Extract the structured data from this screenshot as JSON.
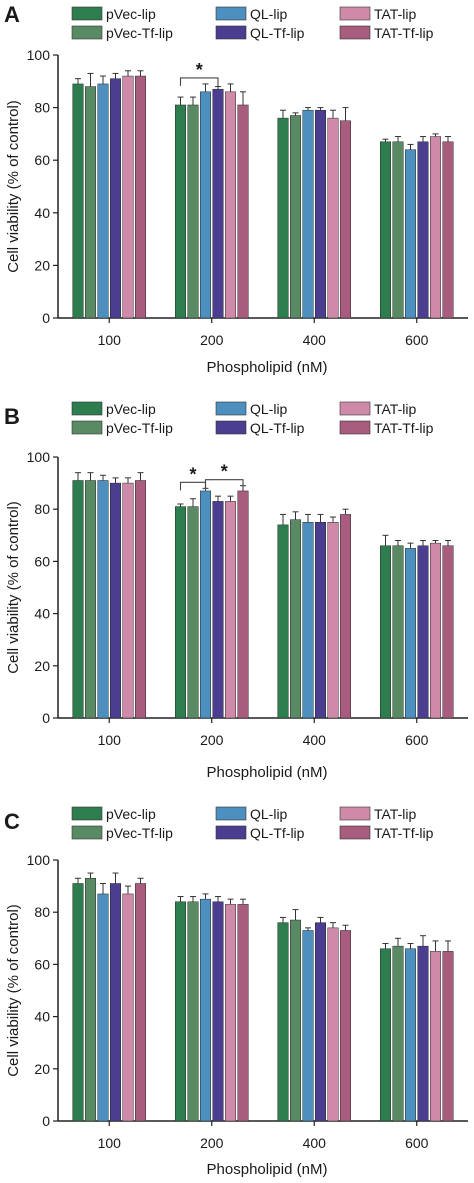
{
  "figure": {
    "panels": [
      {
        "letter": "A",
        "chart_data": {
          "type": "bar",
          "xlabel": "Phospholipid (nM)",
          "ylabel": "Cell viability (% of control)",
          "ylim": [
            0,
            100
          ],
          "yticks": [
            0,
            20,
            40,
            60,
            80,
            100
          ],
          "categories": [
            "100",
            "200",
            "400",
            "600"
          ],
          "legend": [
            "pVec-lip",
            "pVec-Tf-lip",
            "QL-lip",
            "QL-Tf-lip",
            "TAT-lip",
            "TAT-Tf-lip"
          ],
          "colors": [
            "#2e7d4f",
            "#5a8a63",
            "#4d8fbf",
            "#4b3d8f",
            "#d08aa9",
            "#a85c7e"
          ],
          "series": [
            {
              "name": "pVec-lip",
              "values": [
                89,
                81,
                76,
                67
              ],
              "errors": [
                2,
                3,
                3,
                1
              ]
            },
            {
              "name": "pVec-Tf-lip",
              "values": [
                88,
                81,
                77,
                67
              ],
              "errors": [
                5,
                3,
                1,
                2
              ]
            },
            {
              "name": "QL-lip",
              "values": [
                89,
                86,
                79,
                64
              ],
              "errors": [
                3,
                3,
                1,
                2
              ]
            },
            {
              "name": "QL-Tf-lip",
              "values": [
                91,
                87,
                79,
                67
              ],
              "errors": [
                2,
                1,
                1,
                2
              ]
            },
            {
              "name": "TAT-lip",
              "values": [
                92,
                86,
                76,
                69
              ],
              "errors": [
                2,
                3,
                3,
                1
              ]
            },
            {
              "name": "TAT-Tf-lip",
              "values": [
                92,
                81,
                75,
                67
              ],
              "errors": [
                2,
                5,
                5,
                2
              ]
            }
          ],
          "annotations": [
            {
              "text": "*",
              "category": "200",
              "from_series": 0,
              "to_series": 3
            }
          ]
        }
      },
      {
        "letter": "B",
        "chart_data": {
          "type": "bar",
          "xlabel": "Phospholipid (nM)",
          "ylabel": "Cell viability (% of control)",
          "ylim": [
            0,
            100
          ],
          "yticks": [
            0,
            20,
            40,
            60,
            80,
            100
          ],
          "categories": [
            "100",
            "200",
            "400",
            "600"
          ],
          "legend": [
            "pVec-lip",
            "pVec-Tf-lip",
            "QL-lip",
            "QL-Tf-lip",
            "TAT-lip",
            "TAT-Tf-lip"
          ],
          "colors": [
            "#2e7d4f",
            "#5a8a63",
            "#4d8fbf",
            "#4b3d8f",
            "#d08aa9",
            "#a85c7e"
          ],
          "series": [
            {
              "name": "pVec-lip",
              "values": [
                91,
                81,
                74,
                66
              ],
              "errors": [
                3,
                1,
                4,
                4
              ]
            },
            {
              "name": "pVec-Tf-lip",
              "values": [
                91,
                81,
                76,
                66
              ],
              "errors": [
                3,
                3,
                3,
                2
              ]
            },
            {
              "name": "QL-lip",
              "values": [
                91,
                87,
                75,
                65
              ],
              "errors": [
                2,
                1,
                3,
                2
              ]
            },
            {
              "name": "QL-Tf-lip",
              "values": [
                90,
                83,
                75,
                66
              ],
              "errors": [
                2,
                2,
                3,
                2
              ]
            },
            {
              "name": "TAT-lip",
              "values": [
                90,
                83,
                75,
                67
              ],
              "errors": [
                2,
                2,
                2,
                1
              ]
            },
            {
              "name": "TAT-Tf-lip",
              "values": [
                91,
                87,
                78,
                66
              ],
              "errors": [
                3,
                2,
                2,
                2
              ]
            }
          ],
          "annotations": [
            {
              "text": "*",
              "category": "200",
              "from_series": 0,
              "to_series": 2
            },
            {
              "text": "*",
              "category": "200",
              "from_series": 2,
              "to_series": 5
            }
          ]
        }
      },
      {
        "letter": "C",
        "chart_data": {
          "type": "bar",
          "xlabel": "Phospholipid (nM)",
          "ylabel": "Cell viability (% of control)",
          "ylim": [
            0,
            100
          ],
          "yticks": [
            0,
            20,
            40,
            60,
            80,
            100
          ],
          "categories": [
            "100",
            "200",
            "400",
            "600"
          ],
          "legend": [
            "pVec-lip",
            "pVec-Tf-lip",
            "QL-lip",
            "QL-Tf-lip",
            "TAT-lip",
            "TAT-Tf-lip"
          ],
          "colors": [
            "#2e7d4f",
            "#5a8a63",
            "#4d8fbf",
            "#4b3d8f",
            "#d08aa9",
            "#a85c7e"
          ],
          "series": [
            {
              "name": "pVec-lip",
              "values": [
                91,
                84,
                76,
                66
              ],
              "errors": [
                2,
                2,
                2,
                2
              ]
            },
            {
              "name": "pVec-Tf-lip",
              "values": [
                93,
                84,
                77,
                67
              ],
              "errors": [
                2,
                2,
                4,
                3
              ]
            },
            {
              "name": "QL-lip",
              "values": [
                87,
                85,
                73,
                66
              ],
              "errors": [
                4,
                2,
                1,
                2
              ]
            },
            {
              "name": "QL-Tf-lip",
              "values": [
                91,
                84,
                76,
                67
              ],
              "errors": [
                4,
                2,
                2,
                4
              ]
            },
            {
              "name": "TAT-lip",
              "values": [
                87,
                83,
                74,
                65
              ],
              "errors": [
                3,
                2,
                2,
                4
              ]
            },
            {
              "name": "TAT-Tf-lip",
              "values": [
                91,
                83,
                73,
                65
              ],
              "errors": [
                2,
                2,
                2,
                4
              ]
            }
          ],
          "annotations": []
        }
      }
    ]
  }
}
